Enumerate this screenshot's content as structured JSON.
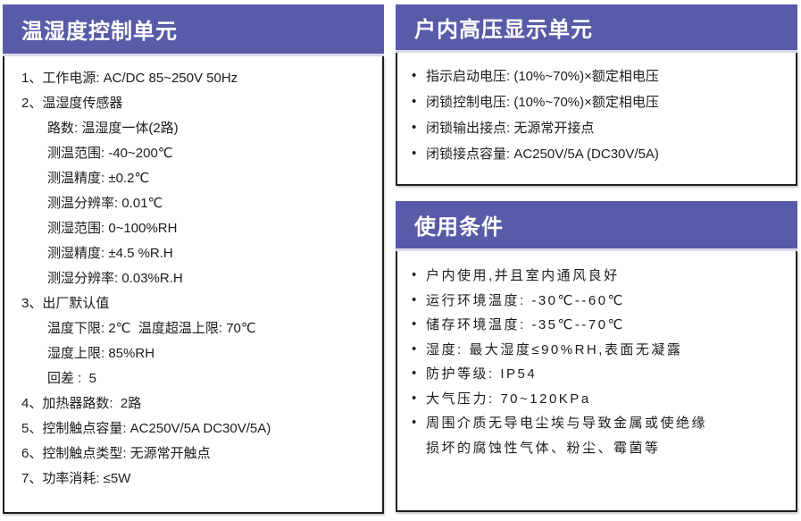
{
  "theme": {
    "header_bg": "#575ba8",
    "header_text": "#ffffff",
    "body_text": "#1c1c1c",
    "panel_border": "#1f1f1f",
    "header_divider": "#d9d9ee"
  },
  "icons": {
    "bullet": "•"
  },
  "left_panel": {
    "title": "温湿度控制单元",
    "lines": [
      "1、工作电源: AC/DC 85~250V 50Hz",
      "2、温湿度传感器",
      "路数: 温湿度一体(2路)",
      "测温范围: -40~200℃",
      "测温精度: ±0.2℃",
      "测温分辨率: 0.01℃",
      "测湿范围: 0~100%RH",
      "测湿精度: ±4.5 %R.H",
      "测湿分辨率: 0.03%R.H",
      "3、出厂默认值",
      "温度下限: 2℃  温度超温上限: 70℃",
      "湿度上限: 85%RH",
      "回差 :  5",
      "4、加热器路数:  2路",
      "5、控制触点容量: AC250V/5A DC30V/5A)",
      "6、控制触点类型: 无源常开触点",
      "7、功率消耗: ≤5W"
    ]
  },
  "right_top_panel": {
    "title": "户内高压显示单元",
    "items": [
      "指示启动电压: (10%~70%)×额定相电压",
      "闭锁控制电压: (10%~70%)×额定相电压",
      "闭锁输出接点: 无源常开接点",
      "闭锁接点容量: AC250V/5A (DC30V/5A)"
    ]
  },
  "right_bottom_panel": {
    "title": "使用条件",
    "items": [
      "户内使用,并且室内通风良好",
      "运行环境温度: -30℃--60℃",
      "储存环境温度: -35℃--70℃",
      "湿度: 最大湿度≤90%RH,表面无凝露",
      "防护等级: IP54",
      "大气压力: 70~120KPa",
      "周围介质无导电尘埃与导致金属或使绝缘"
    ],
    "continuation": "损坏的腐蚀性气体、粉尘、霉菌等"
  }
}
